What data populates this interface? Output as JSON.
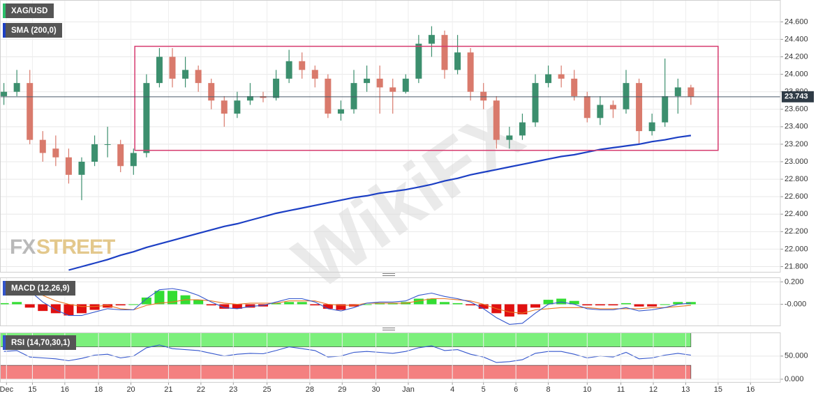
{
  "chart_data": [
    {
      "type": "candlestick",
      "ylim": [
        21.74,
        24.85
      ],
      "yticks": [
        {
          "value": 21.8,
          "label": "21.800"
        },
        {
          "value": 22.0,
          "label": "22.000"
        },
        {
          "value": 22.2,
          "label": "22.200"
        },
        {
          "value": 22.4,
          "label": "22.400"
        },
        {
          "value": 22.6,
          "label": "22.600"
        },
        {
          "value": 22.8,
          "label": "22.800"
        },
        {
          "value": 23.0,
          "label": "23.000"
        },
        {
          "value": 23.2,
          "label": "23.200"
        },
        {
          "value": 23.4,
          "label": "23.400"
        },
        {
          "value": 23.6,
          "label": "23.600"
        },
        {
          "value": 23.8,
          "label": "23.800"
        },
        {
          "value": 24.0,
          "label": "24.000"
        },
        {
          "value": 24.2,
          "label": "24.200"
        },
        {
          "value": 24.4,
          "label": "24.400"
        },
        {
          "value": 24.6,
          "label": "24.600"
        }
      ],
      "grid": true,
      "series": [
        {
          "name": "XAG/USD",
          "kind": "candlestick",
          "up_color": "#3c8f6e",
          "down_color": "#d97a6c",
          "open": [
            23.75,
            23.8,
            23.9,
            23.25,
            23.15,
            23.05,
            22.85,
            23.0,
            23.2,
            23.2,
            22.95,
            23.1,
            23.9,
            24.2,
            23.95,
            24.05,
            23.9,
            23.7,
            23.55,
            23.7,
            23.75,
            23.73,
            23.95,
            24.15,
            24.05,
            23.95,
            23.55,
            23.6,
            23.9,
            23.95,
            23.85,
            23.8,
            23.95,
            24.35,
            24.45,
            24.05,
            24.25,
            23.8,
            23.7,
            23.25,
            23.3,
            23.45,
            23.9,
            24.0,
            23.95,
            23.75,
            23.5,
            23.65,
            23.6,
            23.9,
            23.35,
            23.45,
            23.75,
            23.85
          ],
          "high": [
            23.9,
            24.05,
            24.05,
            23.35,
            23.3,
            23.15,
            23.05,
            23.3,
            23.4,
            23.25,
            23.15,
            24.0,
            24.3,
            24.3,
            24.2,
            24.1,
            23.95,
            23.75,
            23.8,
            23.9,
            23.8,
            24.05,
            24.28,
            24.25,
            24.1,
            24.0,
            23.7,
            24.05,
            24.1,
            24.1,
            23.95,
            24.0,
            24.45,
            24.55,
            24.5,
            24.45,
            24.3,
            23.9,
            23.75,
            23.4,
            23.55,
            24.0,
            24.1,
            24.1,
            24.05,
            23.8,
            23.75,
            23.7,
            24.05,
            23.95,
            23.55,
            24.18,
            23.95,
            23.88
          ],
          "low": [
            23.65,
            23.75,
            23.2,
            23.0,
            22.95,
            22.75,
            22.56,
            22.95,
            23.05,
            22.88,
            22.85,
            23.05,
            23.85,
            23.85,
            23.85,
            23.8,
            23.6,
            23.4,
            23.5,
            23.65,
            23.68,
            23.7,
            23.9,
            23.95,
            23.85,
            23.5,
            23.47,
            23.55,
            23.8,
            23.55,
            23.55,
            23.78,
            23.9,
            24.2,
            23.95,
            24.0,
            23.7,
            23.6,
            23.15,
            23.15,
            23.25,
            23.4,
            23.85,
            23.85,
            23.7,
            23.45,
            23.42,
            23.5,
            23.55,
            23.2,
            23.3,
            23.4,
            23.55,
            23.65
          ],
          "close": [
            23.8,
            23.9,
            23.25,
            23.1,
            23.05,
            22.85,
            23.0,
            23.2,
            23.2,
            22.95,
            23.1,
            23.9,
            24.2,
            23.95,
            24.05,
            23.9,
            23.7,
            23.55,
            23.7,
            23.75,
            23.73,
            23.95,
            24.15,
            24.05,
            23.95,
            23.55,
            23.6,
            23.9,
            23.95,
            23.85,
            23.8,
            23.95,
            24.35,
            24.45,
            24.05,
            24.25,
            23.8,
            23.7,
            23.25,
            23.3,
            23.45,
            23.9,
            24.0,
            23.95,
            23.75,
            23.5,
            23.65,
            23.6,
            23.9,
            23.35,
            23.45,
            23.75,
            23.85,
            23.743
          ]
        },
        {
          "name": "SMA (200,0)",
          "color": "#1c3fc4",
          "values": [
            null,
            null,
            null,
            null,
            null,
            21.76,
            21.8,
            21.84,
            21.88,
            21.93,
            21.97,
            22.02,
            22.06,
            22.1,
            22.14,
            22.18,
            22.22,
            22.26,
            22.29,
            22.33,
            22.37,
            22.41,
            22.44,
            22.47,
            22.5,
            22.53,
            22.56,
            22.59,
            22.61,
            22.64,
            22.66,
            22.68,
            22.71,
            22.74,
            22.78,
            22.81,
            22.85,
            22.88,
            22.91,
            22.94,
            22.97,
            23.0,
            23.03,
            23.06,
            23.08,
            23.11,
            23.14,
            23.16,
            23.18,
            23.2,
            23.23,
            23.25,
            23.28,
            23.3
          ]
        }
      ],
      "last_price": {
        "value": 23.743,
        "label": "23.743"
      },
      "box": {
        "x": [
          10.1,
          55.1
        ],
        "y": [
          23.13,
          24.32
        ],
        "color": "#d63a6e"
      },
      "watermark": [
        "FX",
        "STREET"
      ],
      "overlay_watermark": "WikiFX"
    },
    {
      "type": "macd",
      "title": "MACD (12,26,9)",
      "ylim": [
        -0.19,
        0.24
      ],
      "yticks": [
        {
          "value": 0.0,
          "label": "-0.000"
        },
        {
          "value": 0.2,
          "label": "0.200"
        }
      ],
      "grid": true,
      "histogram": {
        "up_color": "#33dd33",
        "down_color": "#e01010",
        "values": [
          0.01,
          0.02,
          -0.03,
          -0.06,
          -0.08,
          -0.1,
          -0.08,
          -0.05,
          -0.03,
          -0.01,
          0.0,
          0.06,
          0.12,
          0.12,
          0.08,
          0.04,
          -0.01,
          -0.04,
          -0.04,
          -0.03,
          -0.02,
          0.01,
          0.02,
          0.02,
          -0.01,
          -0.04,
          -0.05,
          -0.02,
          0.0,
          0.01,
          0.01,
          0.02,
          0.05,
          0.05,
          0.02,
          0.01,
          -0.01,
          -0.04,
          -0.08,
          -0.11,
          -0.09,
          -0.03,
          0.04,
          0.05,
          0.03,
          -0.01,
          -0.01,
          -0.01,
          0.01,
          -0.02,
          -0.02,
          0.0,
          0.02,
          0.02
        ]
      },
      "macd": {
        "color": "#3355cc",
        "values": [
          0.2,
          0.19,
          0.12,
          0.02,
          -0.05,
          -0.1,
          -0.1,
          -0.07,
          -0.04,
          -0.05,
          -0.05,
          0.05,
          0.13,
          0.14,
          0.12,
          0.08,
          0.02,
          -0.03,
          -0.04,
          -0.02,
          -0.01,
          0.02,
          0.05,
          0.05,
          0.02,
          -0.04,
          -0.06,
          -0.03,
          0.01,
          0.02,
          0.02,
          0.03,
          0.08,
          0.1,
          0.07,
          0.05,
          0.02,
          -0.04,
          -0.12,
          -0.18,
          -0.17,
          -0.08,
          0.0,
          0.02,
          0.0,
          -0.04,
          -0.05,
          -0.05,
          -0.03,
          -0.06,
          -0.05,
          -0.03,
          0.0,
          0.01
        ]
      },
      "signal": {
        "color": "#e87722",
        "values": [
          0.19,
          0.17,
          0.15,
          0.08,
          0.03,
          0.0,
          -0.02,
          -0.02,
          -0.01,
          -0.04,
          -0.05,
          -0.01,
          0.01,
          0.02,
          0.04,
          0.04,
          0.03,
          0.01,
          0.0,
          0.01,
          0.01,
          0.01,
          0.03,
          0.03,
          0.03,
          0.0,
          -0.01,
          -0.01,
          0.01,
          0.01,
          0.01,
          0.01,
          0.03,
          0.05,
          0.05,
          0.04,
          0.03,
          0.0,
          -0.04,
          -0.07,
          -0.08,
          -0.05,
          -0.04,
          -0.03,
          -0.03,
          -0.03,
          -0.04,
          -0.04,
          -0.04,
          -0.04,
          -0.03,
          -0.03,
          -0.02,
          -0.01
        ]
      }
    },
    {
      "type": "line",
      "title": "RSI (14,70,30,1)",
      "ylim": [
        -6,
        101
      ],
      "yticks": [
        {
          "value": 0,
          "label": "0.000"
        },
        {
          "value": 50,
          "label": "50.000"
        }
      ],
      "grid": true,
      "bands": [
        {
          "from": 70,
          "to": 100,
          "color": "#7cf07c"
        },
        {
          "from": 0,
          "to": 30,
          "color": "#f48080"
        }
      ],
      "color": "#3355cc",
      "values": [
        60,
        62,
        48,
        46,
        44,
        40,
        45,
        52,
        54,
        46,
        50,
        68,
        74,
        66,
        64,
        62,
        56,
        50,
        54,
        56,
        55,
        62,
        70,
        66,
        62,
        48,
        50,
        58,
        60,
        58,
        56,
        60,
        68,
        72,
        62,
        64,
        54,
        48,
        36,
        38,
        42,
        56,
        60,
        60,
        54,
        46,
        50,
        48,
        58,
        44,
        46,
        52,
        56,
        52
      ],
      "xlim": [
        -0.3,
        59.9
      ],
      "xticks": [
        {
          "value": 0.2,
          "label": "Dec"
        },
        {
          "value": 2.2,
          "label": "15"
        },
        {
          "value": 4.7,
          "label": "16"
        },
        {
          "value": 7.3,
          "label": "18"
        },
        {
          "value": 9.8,
          "label": "20"
        },
        {
          "value": 12.7,
          "label": "21"
        },
        {
          "value": 15.2,
          "label": "22"
        },
        {
          "value": 17.7,
          "label": "23"
        },
        {
          "value": 20.3,
          "label": "25"
        },
        {
          "value": 23.6,
          "label": "28"
        },
        {
          "value": 26.1,
          "label": "29"
        },
        {
          "value": 28.7,
          "label": "30"
        },
        {
          "value": 31.2,
          "label": "Jan"
        },
        {
          "value": 34.6,
          "label": "4"
        },
        {
          "value": 37.0,
          "label": "5"
        },
        {
          "value": 39.5,
          "label": "6"
        },
        {
          "value": 42.0,
          "label": "8"
        },
        {
          "value": 45.0,
          "label": "10"
        },
        {
          "value": 47.6,
          "label": "11"
        },
        {
          "value": 50.1,
          "label": "12"
        },
        {
          "value": 52.6,
          "label": "13"
        },
        {
          "value": 55.1,
          "label": "15"
        },
        {
          "value": 57.6,
          "label": "16"
        }
      ]
    }
  ]
}
